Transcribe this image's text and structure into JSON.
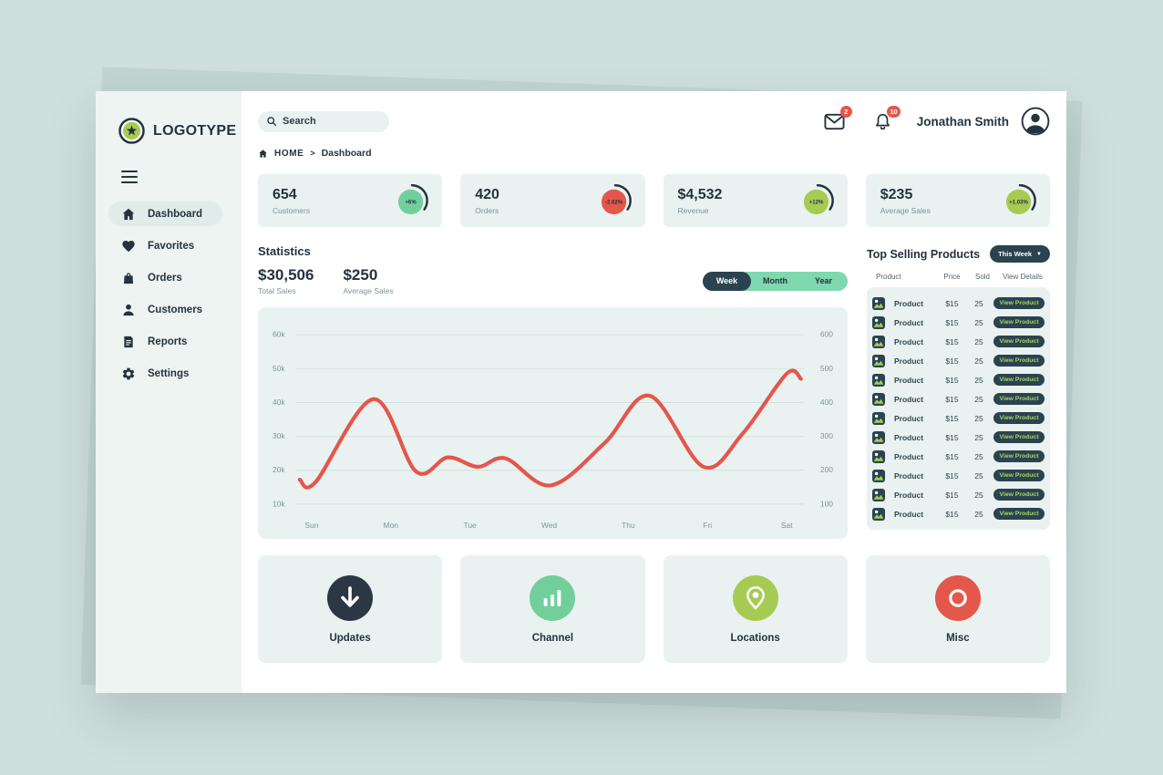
{
  "colors": {
    "dark": "#2b4350",
    "text_dark": "#24333d",
    "muted": "#7d929b",
    "mint_green": "#72cf9c",
    "lime_green": "#a7cb52",
    "red": "#e4574b",
    "panel_mint": "#e9f2f0",
    "toggle_green": "#7fd8ae",
    "button_text_green": "#a9d36a"
  },
  "logo": {
    "text": "LOGOTYPE"
  },
  "sidebar": {
    "items": [
      {
        "label": "Dashboard",
        "icon": "home",
        "active": true
      },
      {
        "label": "Favorites",
        "icon": "heart",
        "active": false
      },
      {
        "label": "Orders",
        "icon": "bag",
        "active": false
      },
      {
        "label": "Customers",
        "icon": "person",
        "active": false
      },
      {
        "label": "Reports",
        "icon": "document",
        "active": false
      },
      {
        "label": "Settings",
        "icon": "gear",
        "active": false
      }
    ]
  },
  "header": {
    "search_placeholder": "Search",
    "mail_badge": "2",
    "bell_badge": "10",
    "user_name": "Jonathan Smith"
  },
  "breadcrumb": {
    "home_label": "HOME",
    "separator": ">",
    "current": "Dashboard"
  },
  "stat_cards": [
    {
      "value": "654",
      "label": "Customers",
      "delta": "+6%",
      "badge_color": "#72cf9c"
    },
    {
      "value": "420",
      "label": "Orders",
      "delta": "-2.02%",
      "badge_color": "#e4574b"
    },
    {
      "value": "$4,532",
      "label": "Revenue",
      "delta": "+12%",
      "badge_color": "#a7cb52"
    },
    {
      "value": "$235",
      "label": "Average Sales",
      "delta": "+1.03%",
      "badge_color": "#a7cb52"
    }
  ],
  "statistics": {
    "title": "Statistics",
    "totals": [
      {
        "value": "$30,506",
        "label": "Total Sales"
      },
      {
        "value": "$250",
        "label": "Average Sales"
      }
    ],
    "range_tabs": [
      {
        "label": "Week",
        "active": true
      },
      {
        "label": "Month",
        "active": false
      },
      {
        "label": "Year",
        "active": false
      }
    ]
  },
  "chart_data": {
    "type": "line",
    "title": "Statistics (weekly sales)",
    "x_labels": [
      "Sun",
      "Mon",
      "Tue",
      "Wed",
      "Thu",
      "Fri",
      "Sat"
    ],
    "y_left_ticks": [
      "60k",
      "50k",
      "40k",
      "30k",
      "20k",
      "10k"
    ],
    "y_right_ticks": [
      "600",
      "500",
      "400",
      "300",
      "200",
      "100"
    ],
    "y_left_range_k": [
      10,
      60
    ],
    "grid": true,
    "legend": "none",
    "series": [
      {
        "name": "Sales",
        "color": "#e4564c",
        "points_day_valueK": [
          [
            -0.15,
            17.2
          ],
          [
            0.05,
            16.5
          ],
          [
            0.78,
            41
          ],
          [
            1.32,
            19.6
          ],
          [
            1.72,
            23.8
          ],
          [
            2.1,
            21
          ],
          [
            2.45,
            23.5
          ],
          [
            3.02,
            15.5
          ],
          [
            3.7,
            28
          ],
          [
            4.27,
            42
          ],
          [
            4.95,
            21
          ],
          [
            5.45,
            31
          ],
          [
            6.0,
            48.5
          ],
          [
            6.18,
            47
          ]
        ]
      }
    ]
  },
  "products": {
    "title": "Top Selling Products",
    "filter_label": "This Week",
    "filter_caret": "▼",
    "columns": [
      "Product",
      "Price",
      "Sold",
      "View Details"
    ],
    "rows": [
      {
        "name": "Product",
        "price": "$15",
        "sold": "25",
        "action": "View Product"
      },
      {
        "name": "Product",
        "price": "$15",
        "sold": "25",
        "action": "View Product"
      },
      {
        "name": "Product",
        "price": "$15",
        "sold": "25",
        "action": "View Product"
      },
      {
        "name": "Product",
        "price": "$15",
        "sold": "25",
        "action": "View Product"
      },
      {
        "name": "Product",
        "price": "$15",
        "sold": "25",
        "action": "View Product"
      },
      {
        "name": "Product",
        "price": "$15",
        "sold": "25",
        "action": "View Product"
      },
      {
        "name": "Product",
        "price": "$15",
        "sold": "25",
        "action": "View Product"
      },
      {
        "name": "Product",
        "price": "$15",
        "sold": "25",
        "action": "View Product"
      },
      {
        "name": "Product",
        "price": "$15",
        "sold": "25",
        "action": "View Product"
      },
      {
        "name": "Product",
        "price": "$15",
        "sold": "25",
        "action": "View Product"
      },
      {
        "name": "Product",
        "price": "$15",
        "sold": "25",
        "action": "View Product"
      },
      {
        "name": "Product",
        "price": "$15",
        "sold": "25",
        "action": "View Product"
      }
    ]
  },
  "shortcuts": [
    {
      "label": "Updates",
      "icon": "download-arrow",
      "color": "#2b3844"
    },
    {
      "label": "Channel",
      "icon": "bar-chart",
      "color": "#72cf9c"
    },
    {
      "label": "Locations",
      "icon": "map-pin",
      "color": "#a7cb52"
    },
    {
      "label": "Misc",
      "icon": "ring",
      "color": "#e4574b"
    }
  ]
}
